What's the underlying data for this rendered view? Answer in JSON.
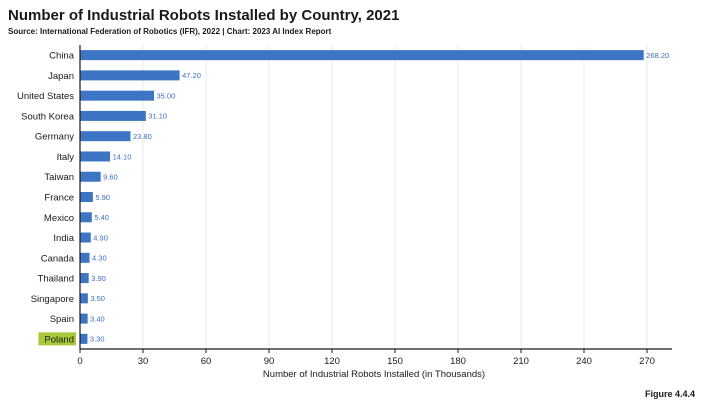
{
  "header": {
    "title": "Number of Industrial Robots Installed by Country, 2021",
    "subtitle": "Source: International Federation of Robotics (IFR), 2022 | Chart: 2023 AI Index Report"
  },
  "figure_label": "Figure 4.4.4",
  "colors": {
    "bar": "#3d75c4",
    "value_label": "#3a6fc0",
    "highlight": "#a8c93a",
    "grid": "#e8e8e8"
  },
  "chart_data": {
    "type": "bar",
    "orientation": "horizontal",
    "categories": [
      "China",
      "Japan",
      "United States",
      "South Korea",
      "Germany",
      "Italy",
      "Taiwan",
      "France",
      "Mexico",
      "India",
      "Canada",
      "Thailand",
      "Singapore",
      "Spain",
      "Poland"
    ],
    "values": [
      268.2,
      47.2,
      35.0,
      31.1,
      23.8,
      14.1,
      9.6,
      5.9,
      5.4,
      4.9,
      4.3,
      3.9,
      3.5,
      3.4,
      3.3
    ],
    "value_labels": [
      "268.20",
      "47.20",
      "35.00",
      "31.10",
      "23.80",
      "14.10",
      "9.60",
      "5.90",
      "5.40",
      "4.90",
      "4.30",
      "3.90",
      "3.50",
      "3.40",
      "3.30"
    ],
    "highlighted_category": "Poland",
    "xlabel": "Number of Industrial Robots Installed (in Thousands)",
    "xlim": [
      0,
      280
    ],
    "xticks": [
      0,
      30,
      60,
      90,
      120,
      150,
      180,
      210,
      240,
      270
    ],
    "grid": true
  }
}
